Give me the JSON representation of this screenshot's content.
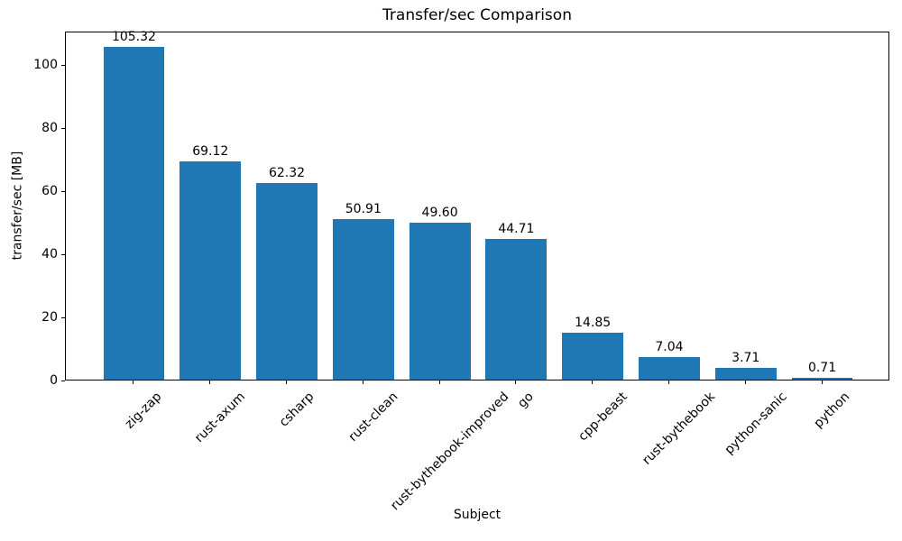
{
  "chart_data": {
    "type": "bar",
    "title": "Transfer/sec Comparison",
    "xlabel": "Subject",
    "ylabel": "transfer/sec [MB]",
    "categories": [
      "zig-zap",
      "rust-axum",
      "csharp",
      "rust-clean",
      "rust-bythebook-improved",
      "go",
      "cpp-beast",
      "rust-bythebook",
      "python-sanic",
      "python"
    ],
    "values": [
      105.32,
      69.12,
      62.32,
      50.91,
      49.6,
      44.71,
      14.85,
      7.04,
      3.71,
      0.71
    ],
    "value_labels": [
      "105.32",
      "69.12",
      "62.32",
      "50.91",
      "49.60",
      "44.71",
      "14.85",
      "7.04",
      "3.71",
      "0.71"
    ],
    "yticks": [
      0,
      20,
      40,
      60,
      80,
      100
    ],
    "ylim": [
      0,
      110.59
    ],
    "xtick_rotation_deg": 45,
    "bar_color": "#1f77b4",
    "axis_color": "#000000",
    "text_color": "#000000",
    "grid": false,
    "legend": null
  }
}
